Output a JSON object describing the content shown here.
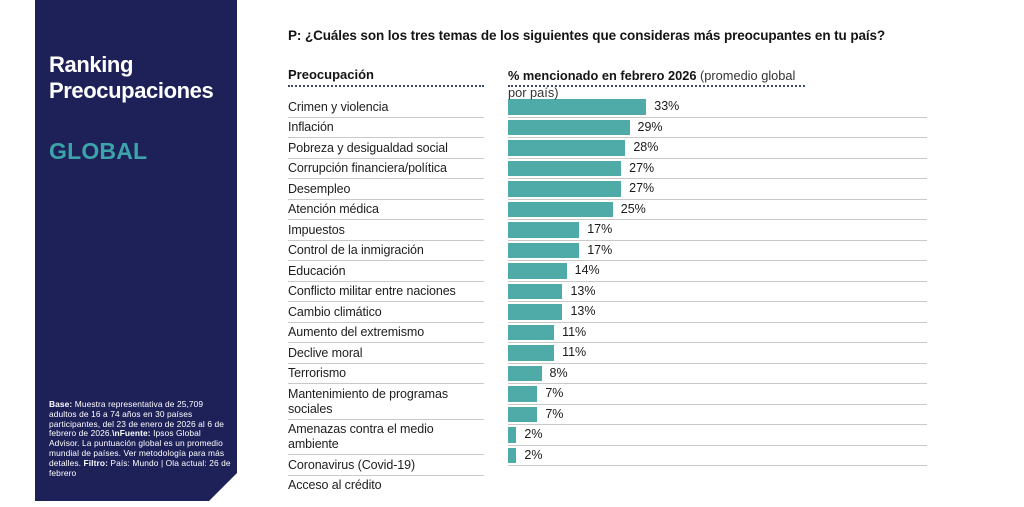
{
  "sidebar": {
    "title": "Ranking Preocupaciones",
    "subtitle": "GLOBAL",
    "footnote_parts": [
      {
        "text": "Base:",
        "bold": true
      },
      {
        "text": " Muestra representativa de 25,709 adultos de 16 a 74 años en 30 países participantes, del 23 de enero de 2026 al 6 de febrero de 2026.",
        "bold": false
      },
      {
        "text": "\\nFuente:",
        "bold": true
      },
      {
        "text": " Ipsos Global Advisor. La puntuación global es un promedio mundial de países. Ver metodología para más detalles. ",
        "bold": false
      },
      {
        "text": "Filtro:",
        "bold": true
      },
      {
        "text": " País: Mundo | Ola actual: 26 de febrero",
        "bold": false
      }
    ],
    "colors": {
      "background": "#1e2158",
      "title": "#ffffff",
      "subtitle": "#3ba3a9"
    }
  },
  "main": {
    "question": "P: ¿Cuáles son los tres temas de los siguientes que consideras más preocupantes en tu país?",
    "category_header": "Preocupación",
    "value_header_bold": "% mencionado en febrero 2026",
    "value_header_note": "(promedio global por país)"
  },
  "chart_data": {
    "type": "bar",
    "orientation": "horizontal",
    "title": "P: ¿Cuáles son los tres temas de los siguientes que consideras más preocupantes en tu país?",
    "categories": [
      "Crimen y violencia",
      "Inflación",
      "Pobreza y desigualdad social",
      "Corrupción financiera/política",
      "Desempleo",
      "Atención médica",
      "Impuestos",
      "Control de la inmigración",
      "Educación",
      "Conflicto militar entre naciones",
      "Cambio climático",
      "Aumento del extremismo",
      "Declive moral",
      "Terrorismo",
      "Mantenimiento de programas sociales",
      "Amenazas contra el medio ambiente",
      "Coronavirus (Covid-19)",
      "Acceso al crédito"
    ],
    "values": [
      33,
      29,
      28,
      27,
      27,
      25,
      17,
      17,
      14,
      13,
      13,
      11,
      11,
      8,
      7,
      7,
      2,
      2
    ],
    "value_suffix": "%",
    "xlim": [
      0,
      100
    ],
    "grid": false,
    "legend": null,
    "bar_color": "#4faba8",
    "separator_color": "#c9c9c9"
  }
}
